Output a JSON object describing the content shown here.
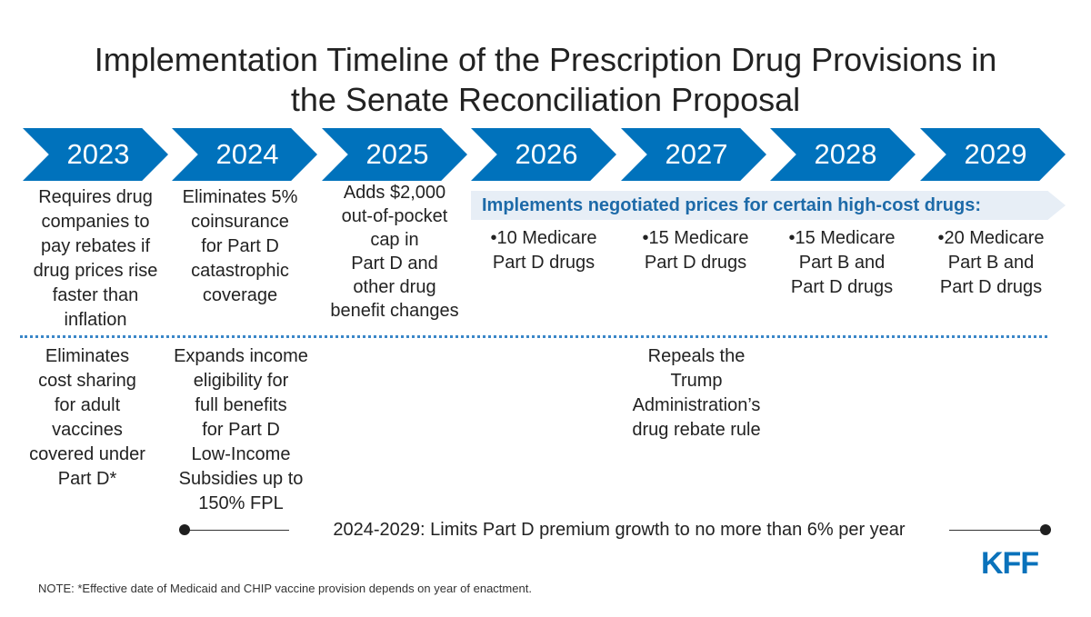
{
  "title": {
    "line1": "Implementation Timeline of the Prescription Drug Provisions in",
    "line2": "the Senate Reconciliation Proposal"
  },
  "years": [
    "2023",
    "2024",
    "2025",
    "2026",
    "2027",
    "2028",
    "2029"
  ],
  "upper": {
    "y2023": [
      "Requires drug",
      "companies to",
      "pay rebates if",
      "drug prices rise",
      "faster than",
      "inflation"
    ],
    "y2024": [
      "Eliminates 5%",
      "coinsurance",
      "for Part D",
      "catastrophic",
      "coverage"
    ],
    "y2025": [
      "Adds $2,000",
      "out-of-pocket",
      "cap in",
      "Part D and",
      "other drug",
      "benefit changes"
    ]
  },
  "negotiation": {
    "banner": "Implements negotiated prices for certain high-cost drugs:",
    "y2026": [
      "•10 Medicare",
      "Part D drugs"
    ],
    "y2027": [
      "•15 Medicare",
      "Part D drugs"
    ],
    "y2028": [
      "•15 Medicare",
      "Part B and",
      "Part D drugs"
    ],
    "y2029": [
      "•20 Medicare",
      "Part B and",
      "Part D drugs"
    ]
  },
  "lower": {
    "y2023": [
      "Eliminates",
      "cost sharing",
      "for adult",
      "vaccines",
      "covered under",
      "Part D*"
    ],
    "y2024": [
      "Expands income",
      "eligibility for",
      "full benefits",
      "for Part D",
      "Low-Income",
      "Subsidies up to",
      "150% FPL"
    ],
    "y2027": [
      "Repeals the",
      "Trump",
      "Administration’s",
      "drug rebate rule"
    ]
  },
  "premium": "2024-2029: Limits Part D premium growth to no more than 6% per year",
  "logo": "KFF",
  "note": "NOTE: *Effective date of Medicaid and CHIP vaccine provision depends on year of enactment.",
  "colors": {
    "chevron": "#0072bc",
    "banner_bg": "#e7eef6",
    "banner_text": "#1d6aa8"
  }
}
